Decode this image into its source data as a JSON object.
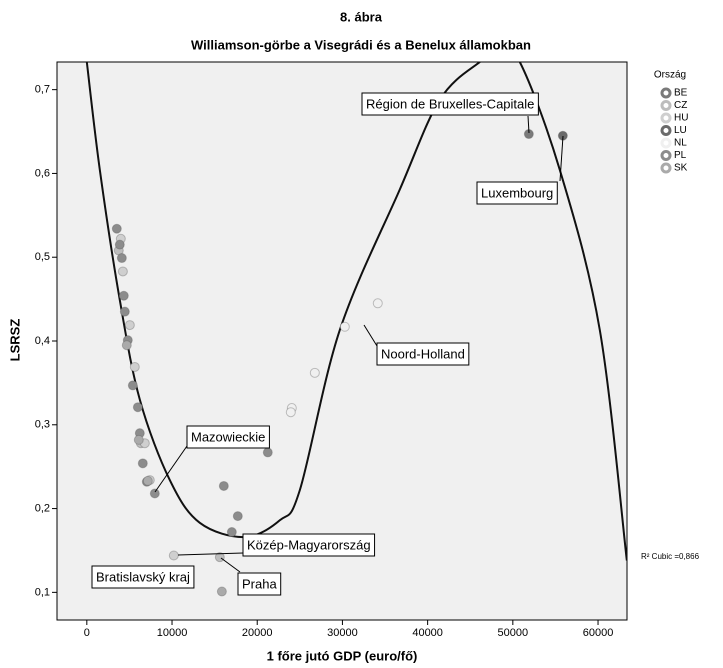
{
  "chart_data": {
    "type": "scatter",
    "title": "8. ábra",
    "subtitle": "Williamson-görbe a Visegrádi és a Benelux államokban",
    "x_label": "1 főre jutó GDP (euro/fő)",
    "y_label": "LSRSZ",
    "legend_title": "Ország",
    "legend_position": "right",
    "fit_label": "R² Cubic =0,866",
    "xlim": [
      -3500,
      63400
    ],
    "ylim": [
      0.067,
      0.733
    ],
    "xticks": [
      0,
      10000,
      20000,
      30000,
      40000,
      50000,
      60000
    ],
    "yticks": [
      {
        "value": 0.1,
        "label": "0,1"
      },
      {
        "value": 0.2,
        "label": "0,2"
      },
      {
        "value": 0.3,
        "label": "0,3"
      },
      {
        "value": 0.4,
        "label": "0,4"
      },
      {
        "value": 0.5,
        "label": "0,5"
      },
      {
        "value": 0.6,
        "label": "0,6"
      },
      {
        "value": 0.7,
        "label": "0,7"
      }
    ],
    "series": [
      {
        "name": "BE",
        "color": "#7a7a7a",
        "x": [
          51880
        ],
        "values": [
          0.647
        ]
      },
      {
        "name": "CZ",
        "color": "#bdbdbd",
        "x": [
          6340,
          15610,
          3750
        ],
        "values": [
          0.278,
          0.142,
          0.508
        ]
      },
      {
        "name": "HU",
        "color": "#cfcfcf",
        "x": [
          3990,
          4230,
          5050,
          5630,
          6810,
          7390,
          10210
        ],
        "values": [
          0.522,
          0.483,
          0.419,
          0.369,
          0.278,
          0.234,
          0.144
        ]
      },
      {
        "name": "LU",
        "color": "#6a6a6a",
        "x": [
          55870
        ],
        "values": [
          0.645
        ]
      },
      {
        "name": "NL",
        "color": "#f0f0f0",
        "x": [
          30280,
          26760,
          24060,
          23940,
          34150
        ],
        "values": [
          0.417,
          0.362,
          0.32,
          0.315,
          0.445
        ]
      },
      {
        "name": "PL",
        "color": "#8c8c8c",
        "x": [
          3520,
          3870,
          4110,
          4340,
          4460,
          4810,
          5400,
          5990,
          6220,
          6570,
          7040,
          7980,
          16080,
          17720,
          17020,
          21240
        ],
        "values": [
          0.534,
          0.515,
          0.499,
          0.454,
          0.435,
          0.401,
          0.347,
          0.321,
          0.29,
          0.254,
          0.232,
          0.218,
          0.227,
          0.191,
          0.172,
          0.267
        ]
      },
      {
        "name": "SK",
        "color": "#aaaaaa",
        "x": [
          4690,
          6100,
          7160,
          15850
        ],
        "values": [
          0.395,
          0.282,
          0.233,
          0.101
        ]
      }
    ],
    "fit_line": {
      "color": "#111111",
      "x": [
        0,
        1530,
        3870,
        6220,
        9740,
        13260,
        18540,
        22650,
        25000,
        29690,
        36740,
        41430,
        46130,
        48500,
        50820,
        55520,
        60210,
        63380
      ],
      "values": [
        0.733,
        0.604,
        0.449,
        0.33,
        0.234,
        0.183,
        0.166,
        0.186,
        0.222,
        0.413,
        0.581,
        0.688,
        0.733,
        0.745,
        0.733,
        0.604,
        0.413,
        0.138
      ]
    },
    "annotations": [
      "Région de Bruxelles-Capitale",
      "Luxembourg",
      "Noord-Holland",
      "Mazowieckie",
      "Közép-Magyarország",
      "Bratislavský kraj",
      "Praha"
    ]
  }
}
